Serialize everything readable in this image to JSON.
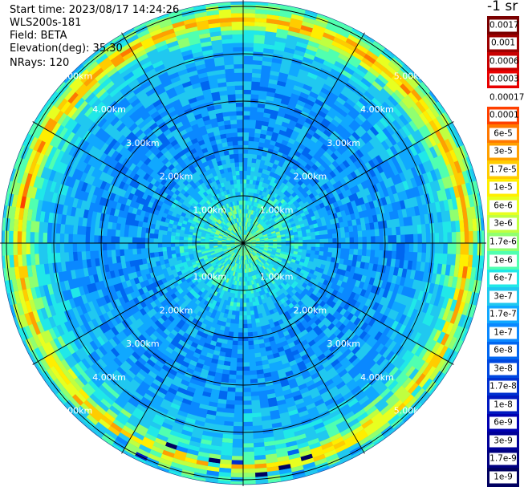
{
  "info": {
    "start_time": "Start time: 2023/08/17 14:24:26",
    "instrument": "WLS200s-181",
    "field": "Field: BETA",
    "elevation": "Elevation(deg): 35.30",
    "nrays": "NRays: 120"
  },
  "chart_data": {
    "type": "polar-ppi",
    "field": "BETA",
    "unit": "-1 sr",
    "range_max_km": 5.1,
    "range_ring_labels": [
      "1.00km",
      "2.00km",
      "3.00km",
      "4.00km",
      "5.00km"
    ],
    "range_rings_km": [
      1,
      2,
      3,
      4,
      5
    ],
    "azimuth_lines_deg": [
      0,
      30,
      60,
      90,
      120,
      150,
      180,
      210,
      240,
      270,
      300,
      330
    ],
    "nrays": 120,
    "radial_profile_typical": [
      {
        "range_km": 0.0,
        "value": 1.7e-06
      },
      {
        "range_km": 0.5,
        "value": 1e-06
      },
      {
        "range_km": 1.0,
        "value": 6e-07
      },
      {
        "range_km": 2.0,
        "value": 1.7e-07
      },
      {
        "range_km": 3.0,
        "value": 1.7e-07
      },
      {
        "range_km": 4.0,
        "value": 3e-07
      },
      {
        "range_km": 4.5,
        "value": 1e-06
      },
      {
        "range_km": 4.75,
        "value": 3e-05
      },
      {
        "range_km": 4.9,
        "value": 1.7e-06
      },
      {
        "range_km": 5.1,
        "value": 6e-07
      }
    ],
    "colorbar": [
      {
        "label": "0.0017",
        "color": "#7a0000"
      },
      {
        "label": "0.001",
        "color": "#9c0000"
      },
      {
        "label": "0.0006",
        "color": "#c80000"
      },
      {
        "label": "0.0003",
        "color": "#e80000"
      },
      {
        "label": "0.00017",
        "color": "#ffffff"
      },
      {
        "label": "0.0001",
        "color": "#ff4000"
      },
      {
        "label": "6e-5",
        "color": "#ff7800"
      },
      {
        "label": "3e-5",
        "color": "#ffa000"
      },
      {
        "label": "1.7e-5",
        "color": "#ffcc00"
      },
      {
        "label": "1e-5",
        "color": "#ffee00"
      },
      {
        "label": "6e-6",
        "color": "#e8ff20"
      },
      {
        "label": "3e-6",
        "color": "#c0ff40"
      },
      {
        "label": "1.7e-6",
        "color": "#90ff70"
      },
      {
        "label": "1e-6",
        "color": "#50ffb0"
      },
      {
        "label": "6e-7",
        "color": "#20e8e8"
      },
      {
        "label": "3e-7",
        "color": "#20c8f0"
      },
      {
        "label": "1.7e-7",
        "color": "#10a8ff"
      },
      {
        "label": "1e-7",
        "color": "#0a88ff"
      },
      {
        "label": "6e-8",
        "color": "#0066f0"
      },
      {
        "label": "3e-8",
        "color": "#0048e0"
      },
      {
        "label": "1.7e-8",
        "color": "#0030d0"
      },
      {
        "label": "1e-8",
        "color": "#0018c0"
      },
      {
        "label": "6e-9",
        "color": "#0000b0"
      },
      {
        "label": "3e-9",
        "color": "#000098"
      },
      {
        "label": "1.7e-9",
        "color": "#000080"
      },
      {
        "label": "1e-9",
        "color": "#000060"
      }
    ]
  }
}
